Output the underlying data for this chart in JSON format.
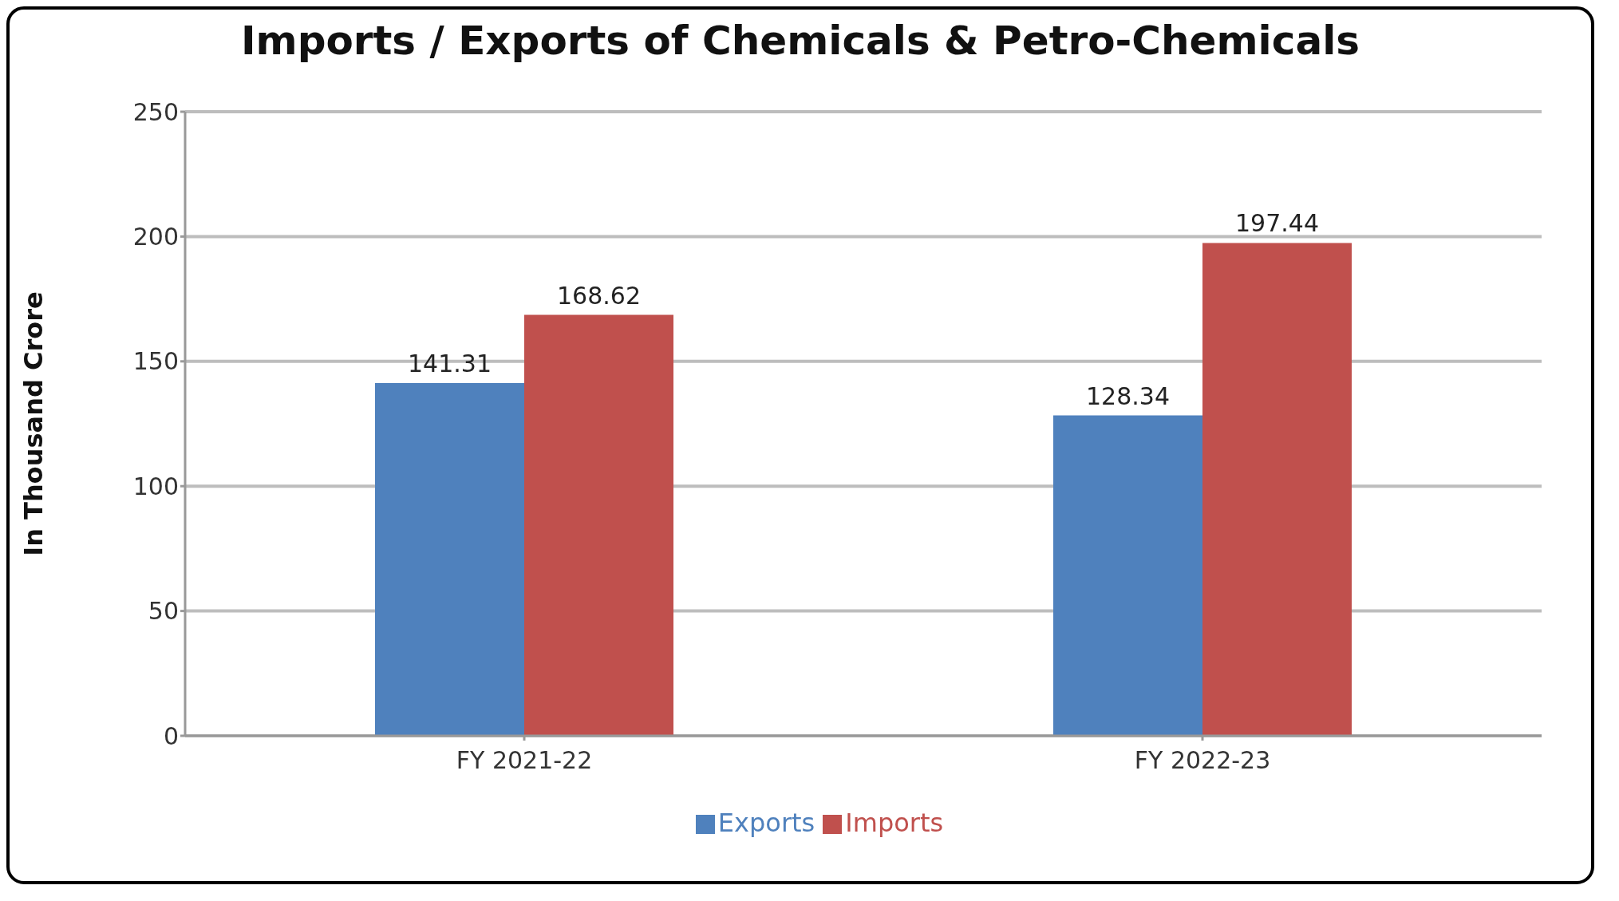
{
  "chart_data": {
    "type": "bar",
    "title": "Imports / Exports of Chemicals & Petro-Chemicals",
    "ylabel": "In Thousand Crore",
    "categories": [
      "FY 2021-22",
      "FY 2022-23"
    ],
    "series": [
      {
        "name": "Exports",
        "color": "#4f81bd",
        "values": [
          141.31,
          128.34
        ]
      },
      {
        "name": "Imports",
        "color": "#c0504d",
        "values": [
          168.62,
          197.44
        ]
      }
    ],
    "ylim": [
      0,
      250
    ],
    "yticks": [
      0,
      50,
      100,
      150,
      200,
      250
    ],
    "grid": "y",
    "data_labels": true,
    "legend": "bottom"
  }
}
